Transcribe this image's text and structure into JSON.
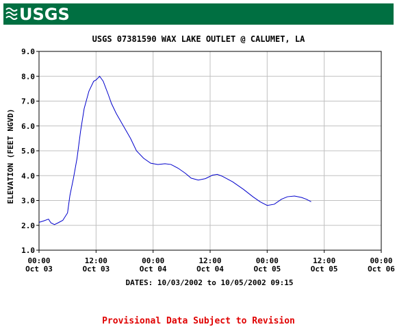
{
  "logo": "USGS",
  "chart_data": {
    "type": "line",
    "title": "USGS 07381590 WAX LAKE OUTLET @ CALUMET, LA",
    "x_label": "DATES: 10/03/2002 to 10/05/2002 09:15",
    "y_label": "ELEVATION (FEET NGVD)",
    "xlim": [
      0,
      72
    ],
    "xticks": [
      {
        "value": 0,
        "label": [
          "00:00",
          "Oct 03"
        ]
      },
      {
        "value": 12,
        "label": [
          "12:00",
          "Oct 03"
        ]
      },
      {
        "value": 24,
        "label": [
          "00:00",
          "Oct 04"
        ]
      },
      {
        "value": 36,
        "label": [
          "12:00",
          "Oct 04"
        ]
      },
      {
        "value": 48,
        "label": [
          "00:00",
          "Oct 05"
        ]
      },
      {
        "value": 60,
        "label": [
          "12:00",
          "Oct 05"
        ]
      },
      {
        "value": 72,
        "label": [
          "00:00",
          "Oct 06"
        ]
      }
    ],
    "ylim": [
      1,
      9
    ],
    "yticks": [
      {
        "value": 1,
        "label": "1.0"
      },
      {
        "value": 2,
        "label": "2.0"
      },
      {
        "value": 3,
        "label": "3.0"
      },
      {
        "value": 4,
        "label": "4.0"
      },
      {
        "value": 5,
        "label": "5.0"
      },
      {
        "value": 6,
        "label": "6.0"
      },
      {
        "value": 7,
        "label": "7.0"
      },
      {
        "value": 8,
        "label": "8.0"
      },
      {
        "value": 9,
        "label": "9.0"
      }
    ],
    "grid": true,
    "x": [
      0,
      1,
      2,
      2.5,
      3.25,
      4,
      5,
      6,
      6.5,
      7.25,
      8,
      8.75,
      9.5,
      10.5,
      11.5,
      12,
      12.75,
      13.5,
      14.5,
      15.25,
      16.25,
      17.75,
      19.25,
      20.5,
      22,
      23.5,
      25,
      26.5,
      27.75,
      29.25,
      30.75,
      32,
      33.5,
      35,
      36.5,
      37.5,
      38.5,
      40.75,
      43,
      45,
      46.5,
      48,
      49.5,
      51,
      52.25,
      53.75,
      55.25,
      56.25,
      57.25
    ],
    "series": [
      {
        "color": "#0000cc",
        "values": [
          2.12,
          2.18,
          2.25,
          2.1,
          2.03,
          2.1,
          2.2,
          2.5,
          3.2,
          3.9,
          4.7,
          5.8,
          6.7,
          7.4,
          7.8,
          7.85,
          8.0,
          7.8,
          7.3,
          6.9,
          6.5,
          6.0,
          5.5,
          5.0,
          4.7,
          4.5,
          4.45,
          4.48,
          4.45,
          4.3,
          4.1,
          3.9,
          3.82,
          3.88,
          4.02,
          4.05,
          3.98,
          3.75,
          3.45,
          3.15,
          2.95,
          2.8,
          2.85,
          3.05,
          3.15,
          3.18,
          3.12,
          3.05,
          2.95
        ]
      }
    ]
  },
  "footer": "Provisional Data Subject to Revision"
}
